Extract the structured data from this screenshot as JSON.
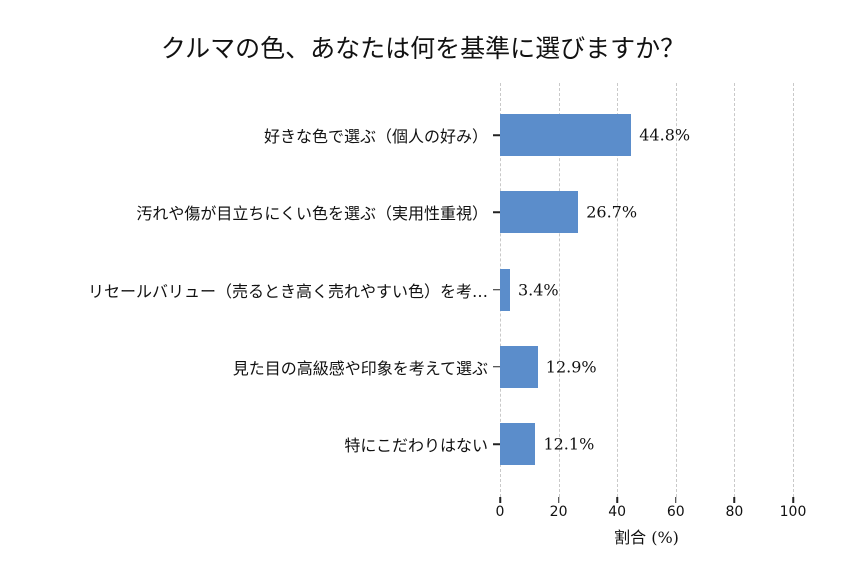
{
  "chart_data": {
    "type": "bar",
    "orientation": "horizontal",
    "title": "クルマの色、あなたは何を基準に選びますか？",
    "categories": [
      "好きな色で選ぶ（個人の好み）",
      "汚れや傷が目立ちにくい色を選ぶ（実用性重視）",
      "リセールバリュー（売るとき高く売れやすい色）を考…",
      "見た目の高級感や印象を考えて選ぶ",
      "特にこだわりはない"
    ],
    "values": [
      44.8,
      26.7,
      3.4,
      12.9,
      12.1
    ],
    "value_labels": [
      "44.8%",
      "26.7%",
      "3.4%",
      "12.9%",
      "12.1%"
    ],
    "xlabel": "割合 (%)",
    "xlim": [
      0,
      100
    ],
    "x_ticks": [
      0,
      20,
      40,
      60,
      80,
      100
    ],
    "grid": "vertical-dashed",
    "legend": "none",
    "colors": {
      "bar": "#5b8dcb",
      "gridline": "#c9c9c9",
      "tick": "#222222",
      "text": "#111111",
      "background": "#ffffff"
    }
  }
}
